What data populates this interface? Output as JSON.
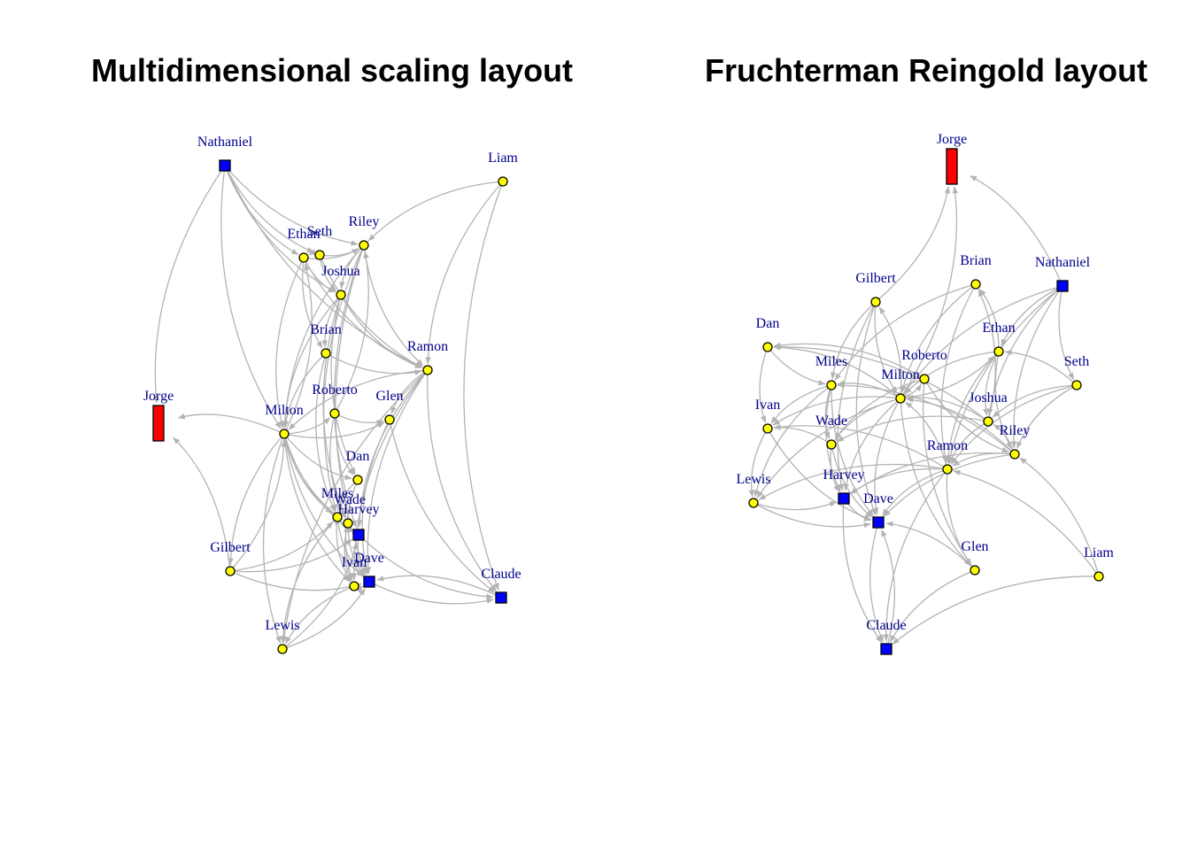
{
  "colors": {
    "edge": "#b3b3b3",
    "label": "#00008b",
    "circle_fill": "#ffff00",
    "square_fill": "#0000ff",
    "rect_fill": "#ff0000",
    "outline": "#000000"
  },
  "plots": [
    {
      "id": "mds",
      "title": "Multidimensional scaling layout",
      "nodes": [
        {
          "name": "Nathaniel",
          "shape": "square"
        },
        {
          "name": "Liam",
          "shape": "circle"
        },
        {
          "name": "Seth",
          "shape": "circle"
        },
        {
          "name": "Ethan",
          "shape": "circle"
        },
        {
          "name": "Riley",
          "shape": "circle"
        },
        {
          "name": "Joshua",
          "shape": "circle"
        },
        {
          "name": "Brian",
          "shape": "circle"
        },
        {
          "name": "Ramon",
          "shape": "circle"
        },
        {
          "name": "Jorge",
          "shape": "rect"
        },
        {
          "name": "Milton",
          "shape": "circle"
        },
        {
          "name": "Roberto",
          "shape": "circle"
        },
        {
          "name": "Glen",
          "shape": "circle"
        },
        {
          "name": "Dan",
          "shape": "circle"
        },
        {
          "name": "Miles",
          "shape": "circle"
        },
        {
          "name": "Wade",
          "shape": "circle"
        },
        {
          "name": "Harvey",
          "shape": "square"
        },
        {
          "name": "Gilbert",
          "shape": "circle"
        },
        {
          "name": "Ivan",
          "shape": "circle"
        },
        {
          "name": "Dave",
          "shape": "square"
        },
        {
          "name": "Claude",
          "shape": "square"
        },
        {
          "name": "Lewis",
          "shape": "circle"
        }
      ]
    },
    {
      "id": "fr",
      "title": "Fruchterman Reingold layout",
      "nodes": [
        {
          "name": "Jorge",
          "shape": "rect"
        },
        {
          "name": "Gilbert",
          "shape": "circle"
        },
        {
          "name": "Brian",
          "shape": "circle"
        },
        {
          "name": "Nathaniel",
          "shape": "square"
        },
        {
          "name": "Dan",
          "shape": "circle"
        },
        {
          "name": "Ethan",
          "shape": "circle"
        },
        {
          "name": "Roberto",
          "shape": "circle"
        },
        {
          "name": "Miles",
          "shape": "circle"
        },
        {
          "name": "Milton",
          "shape": "circle"
        },
        {
          "name": "Seth",
          "shape": "circle"
        },
        {
          "name": "Ivan",
          "shape": "circle"
        },
        {
          "name": "Joshua",
          "shape": "circle"
        },
        {
          "name": "Wade",
          "shape": "circle"
        },
        {
          "name": "Riley",
          "shape": "circle"
        },
        {
          "name": "Ramon",
          "shape": "circle"
        },
        {
          "name": "Lewis",
          "shape": "circle"
        },
        {
          "name": "Harvey",
          "shape": "square"
        },
        {
          "name": "Dave",
          "shape": "square"
        },
        {
          "name": "Glen",
          "shape": "circle"
        },
        {
          "name": "Liam",
          "shape": "circle"
        },
        {
          "name": "Claude",
          "shape": "square"
        }
      ]
    }
  ],
  "edges": [
    [
      "Nathaniel",
      "Ethan"
    ],
    [
      "Nathaniel",
      "Seth"
    ],
    [
      "Nathaniel",
      "Joshua"
    ],
    [
      "Nathaniel",
      "Riley"
    ],
    [
      "Nathaniel",
      "Jorge"
    ],
    [
      "Nathaniel",
      "Milton"
    ],
    [
      "Nathaniel",
      "Ramon"
    ],
    [
      "Liam",
      "Riley"
    ],
    [
      "Liam",
      "Ramon"
    ],
    [
      "Liam",
      "Claude"
    ],
    [
      "Seth",
      "Ethan"
    ],
    [
      "Seth",
      "Riley"
    ],
    [
      "Seth",
      "Joshua"
    ],
    [
      "Seth",
      "Ramon"
    ],
    [
      "Ethan",
      "Riley"
    ],
    [
      "Ethan",
      "Joshua"
    ],
    [
      "Ethan",
      "Brian"
    ],
    [
      "Ethan",
      "Ramon"
    ],
    [
      "Ethan",
      "Milton"
    ],
    [
      "Riley",
      "Joshua"
    ],
    [
      "Riley",
      "Ramon"
    ],
    [
      "Riley",
      "Milton"
    ],
    [
      "Riley",
      "Dave"
    ],
    [
      "Riley",
      "Harvey"
    ],
    [
      "Riley",
      "Miles"
    ],
    [
      "Joshua",
      "Brian"
    ],
    [
      "Joshua",
      "Ramon"
    ],
    [
      "Joshua",
      "Milton"
    ],
    [
      "Joshua",
      "Dan"
    ],
    [
      "Joshua",
      "Wade"
    ],
    [
      "Brian",
      "Ramon"
    ],
    [
      "Brian",
      "Milton"
    ],
    [
      "Brian",
      "Miles"
    ],
    [
      "Ramon",
      "Milton"
    ],
    [
      "Ramon",
      "Glen"
    ],
    [
      "Ramon",
      "Dave"
    ],
    [
      "Ramon",
      "Claude"
    ],
    [
      "Ramon",
      "Harvey"
    ],
    [
      "Ramon",
      "Lewis"
    ],
    [
      "Ramon",
      "Ivan"
    ],
    [
      "Milton",
      "Jorge"
    ],
    [
      "Milton",
      "Roberto"
    ],
    [
      "Milton",
      "Glen"
    ],
    [
      "Milton",
      "Dan"
    ],
    [
      "Milton",
      "Miles"
    ],
    [
      "Milton",
      "Wade"
    ],
    [
      "Milton",
      "Harvey"
    ],
    [
      "Milton",
      "Dave"
    ],
    [
      "Milton",
      "Ivan"
    ],
    [
      "Milton",
      "Gilbert"
    ],
    [
      "Milton",
      "Lewis"
    ],
    [
      "Milton",
      "Ethan"
    ],
    [
      "Gilbert",
      "Jorge"
    ],
    [
      "Gilbert",
      "Milton"
    ],
    [
      "Gilbert",
      "Miles"
    ],
    [
      "Gilbert",
      "Harvey"
    ],
    [
      "Gilbert",
      "Dave"
    ],
    [
      "Roberto",
      "Glen"
    ],
    [
      "Roberto",
      "Dan"
    ],
    [
      "Roberto",
      "Wade"
    ],
    [
      "Roberto",
      "Riley"
    ],
    [
      "Glen",
      "Dave"
    ],
    [
      "Glen",
      "Claude"
    ],
    [
      "Dan",
      "Miles"
    ],
    [
      "Dan",
      "Ivan"
    ],
    [
      "Miles",
      "Wade"
    ],
    [
      "Miles",
      "Harvey"
    ],
    [
      "Miles",
      "Ivan"
    ],
    [
      "Miles",
      "Dave"
    ],
    [
      "Miles",
      "Lewis"
    ],
    [
      "Wade",
      "Harvey"
    ],
    [
      "Wade",
      "Dave"
    ],
    [
      "Wade",
      "Ivan"
    ],
    [
      "Harvey",
      "Dave"
    ],
    [
      "Harvey",
      "Claude"
    ],
    [
      "Ivan",
      "Dave"
    ],
    [
      "Ivan",
      "Lewis"
    ],
    [
      "Dave",
      "Claude"
    ],
    [
      "Claude",
      "Dave"
    ],
    [
      "Lewis",
      "Dave"
    ],
    [
      "Lewis",
      "Harvey"
    ]
  ]
}
